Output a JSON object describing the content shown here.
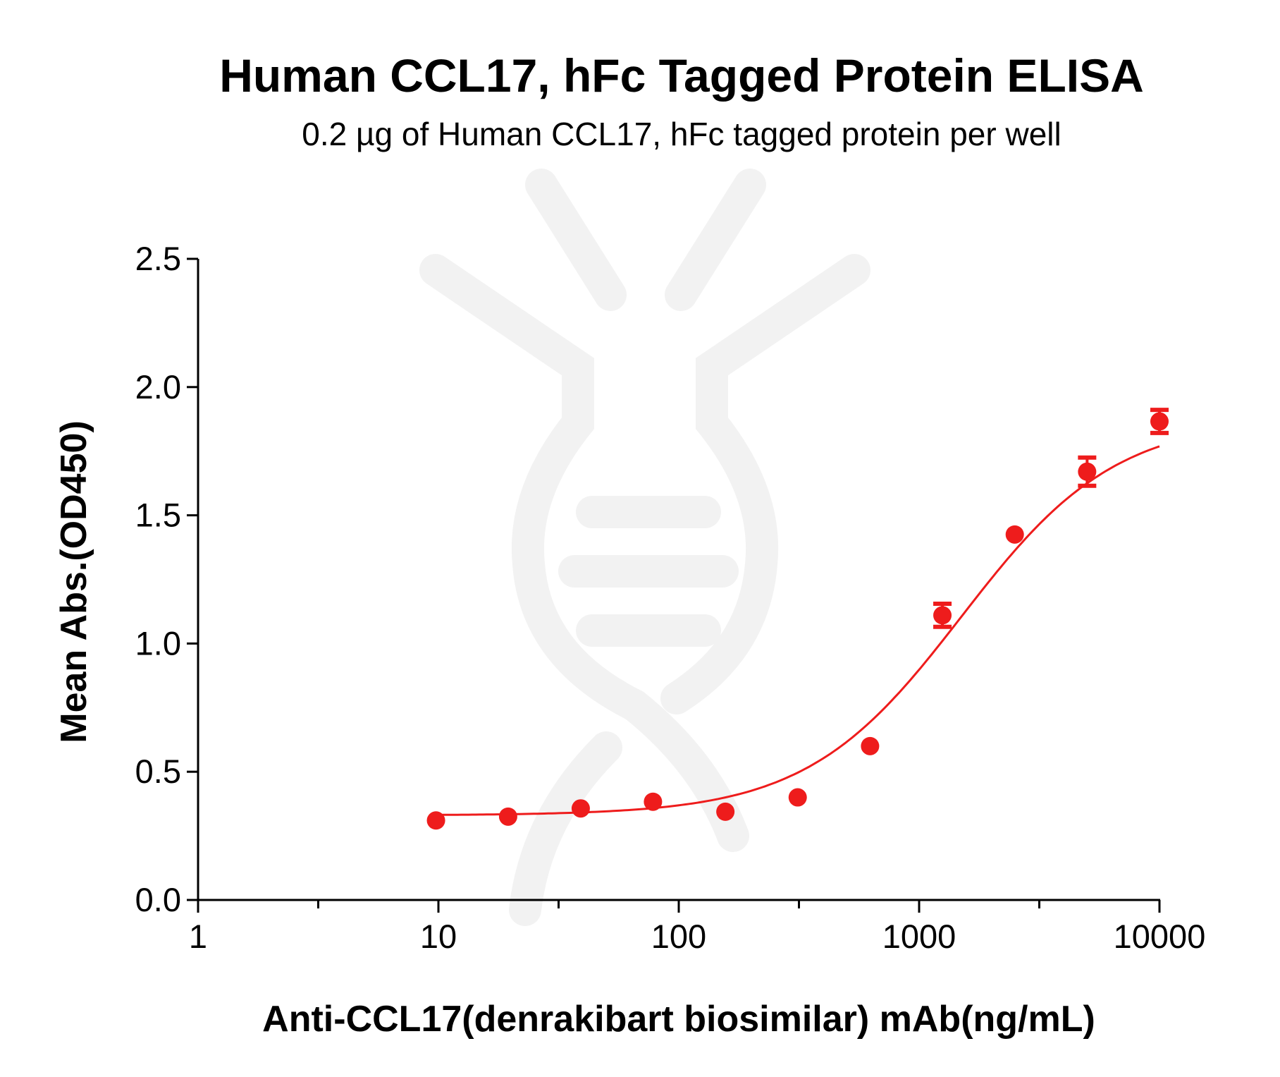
{
  "chart_data": {
    "type": "scatter",
    "title": "Human CCL17, hFc Tagged Protein ELISA",
    "subtitle": "0.2 µg of Human CCL17, hFc tagged protein per well",
    "xlabel": "Anti-CCL17(denrakibart biosimilar) mAb(ng/mL)",
    "ylabel": "Mean Abs.(OD450)",
    "xscale": "log",
    "xlim": [
      1,
      10000
    ],
    "ylim": [
      0,
      2.5
    ],
    "xticks": [
      "1",
      "10",
      "100",
      "1000",
      "10000"
    ],
    "yticks": [
      "0.0",
      "0.5",
      "1.0",
      "1.5",
      "2.0",
      "2.5"
    ],
    "grid": false,
    "color": "#ee1c1c",
    "watermark_color": "#f2f2f2",
    "series": [
      {
        "x": [
          9.77,
          19.5,
          39.1,
          78.1,
          156.3,
          312.5,
          625,
          1250,
          2500,
          5000,
          10000
        ],
        "y": [
          0.31,
          0.325,
          0.357,
          0.383,
          0.344,
          0.4,
          0.6,
          1.11,
          1.425,
          1.67,
          1.866
        ],
        "error": [
          0.01,
          0.01,
          0.01,
          0.01,
          0.01,
          0.01,
          0.01,
          0.045,
          0.01,
          0.055,
          0.045
        ],
        "fit": "4PL curve"
      }
    ]
  }
}
